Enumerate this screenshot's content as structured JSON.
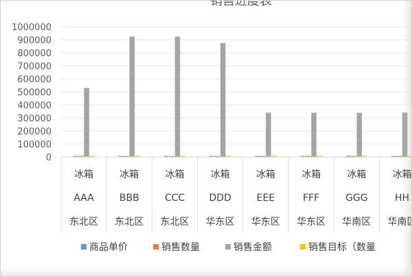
{
  "chart_data": {
    "type": "bar",
    "title": "销售进度表",
    "ylim": [
      0,
      1000000
    ],
    "yticks": [
      "1000000",
      "900000",
      "800000",
      "700000",
      "600000",
      "500000",
      "400000",
      "300000",
      "200000",
      "100000",
      "0"
    ],
    "categories": [
      {
        "line1": "冰箱",
        "line2": "AAA",
        "line3": "东北区"
      },
      {
        "line1": "冰箱",
        "line2": "BBB",
        "line3": "东北区"
      },
      {
        "line1": "冰箱",
        "line2": "CCC",
        "line3": "东北区"
      },
      {
        "line1": "冰箱",
        "line2": "DDD",
        "line3": "华东区"
      },
      {
        "line1": "冰箱",
        "line2": "EEE",
        "line3": "华东区"
      },
      {
        "line1": "冰箱",
        "line2": "FFF",
        "line3": "华东区"
      },
      {
        "line1": "冰箱",
        "line2": "GGG",
        "line3": "华南区"
      },
      {
        "line1": "冰箱",
        "line2": "HH",
        "line3": "华南区"
      }
    ],
    "series": [
      {
        "name": "商品单价",
        "color": "#5B9BD5",
        "values": [
          3000,
          3000,
          3000,
          3000,
          3000,
          3000,
          3000,
          3000
        ]
      },
      {
        "name": "销售数量",
        "color": "#ED7D31",
        "values": [
          200,
          300,
          300,
          300,
          100,
          100,
          100,
          100
        ]
      },
      {
        "name": "销售金额",
        "color": "#A5A5A5",
        "values": [
          530000,
          925000,
          925000,
          875000,
          340000,
          340000,
          340000,
          340000
        ]
      },
      {
        "name": "销售目标（数量",
        "color": "#FFC000",
        "values": [
          300,
          300,
          300,
          300,
          300,
          300,
          300,
          300
        ]
      }
    ],
    "legend_position": "bottom"
  }
}
